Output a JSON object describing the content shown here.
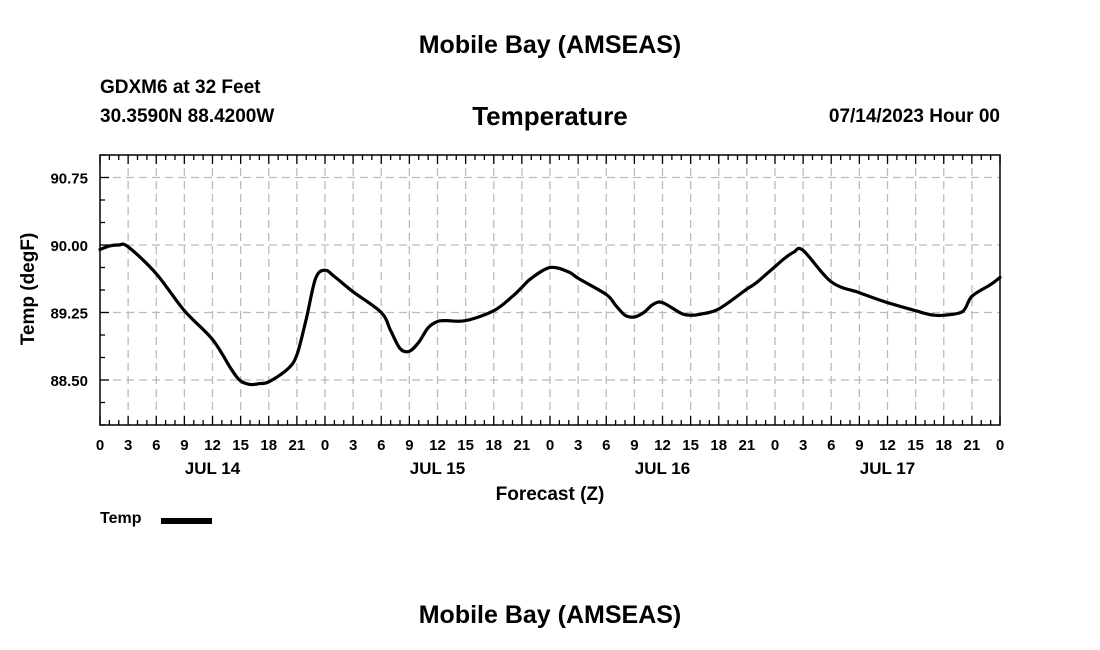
{
  "header": {
    "title": "Mobile Bay (AMSEAS)",
    "station": "GDXM6 at 32 Feet",
    "coords": "30.3590N  88.4200W",
    "subtitle": "Temperature",
    "datetime": "07/14/2023 Hour 00"
  },
  "footer": {
    "title": "Mobile Bay (AMSEAS)"
  },
  "legend": {
    "label": "Temp"
  },
  "colors": {
    "line": "#000000",
    "grid": "#bbbbbb",
    "axis": "#000000"
  },
  "chart_data": {
    "type": "line",
    "title": "Temperature",
    "xlabel": "Forecast (Z)",
    "ylabel": "Temp (degF)",
    "xlim": [
      0,
      96
    ],
    "ylim": [
      88.0,
      91.0
    ],
    "grid": true,
    "legend_position": "bottom-left",
    "yticks": [
      88.5,
      89.25,
      90.0,
      90.75
    ],
    "ytick_labels": [
      "88.50",
      "89.25",
      "90.00",
      "90.75"
    ],
    "xticks": [
      0,
      3,
      6,
      9,
      12,
      15,
      18,
      21,
      24,
      27,
      30,
      33,
      36,
      39,
      42,
      45,
      48,
      51,
      54,
      57,
      60,
      63,
      66,
      69,
      72,
      75,
      78,
      81,
      84,
      87,
      90,
      93,
      96
    ],
    "xtick_labels": [
      "0",
      "3",
      "6",
      "9",
      "12",
      "15",
      "18",
      "21",
      "0",
      "3",
      "6",
      "9",
      "12",
      "15",
      "18",
      "21",
      "0",
      "3",
      "6",
      "9",
      "12",
      "15",
      "18",
      "21",
      "0",
      "3",
      "6",
      "9",
      "12",
      "15",
      "18",
      "21",
      "0"
    ],
    "day_labels": [
      {
        "label": "JUL 14",
        "x": 12
      },
      {
        "label": "JUL 15",
        "x": 36
      },
      {
        "label": "JUL 16",
        "x": 60
      },
      {
        "label": "JUL 17",
        "x": 84
      }
    ],
    "series": [
      {
        "name": "Temp",
        "x": [
          0,
          1,
          2,
          3,
          6,
          9,
          12,
          14,
          15,
          16,
          17,
          18,
          20,
          21,
          22,
          23,
          24,
          25,
          27,
          30,
          31,
          32,
          33,
          34,
          35,
          36,
          37,
          39,
          42,
          44,
          45,
          46,
          48,
          50,
          51,
          54,
          55,
          56,
          57,
          58,
          59,
          60,
          62,
          63,
          64,
          66,
          69,
          70,
          72,
          73,
          74,
          75,
          78,
          81,
          84,
          87,
          88,
          89,
          90,
          92,
          93,
          95,
          96
        ],
        "y": [
          89.95,
          89.99,
          90.0,
          89.98,
          89.68,
          89.27,
          88.95,
          88.62,
          88.49,
          88.45,
          88.46,
          88.48,
          88.62,
          88.78,
          89.18,
          89.63,
          89.72,
          89.65,
          89.48,
          89.25,
          89.05,
          88.85,
          88.82,
          88.92,
          89.08,
          89.15,
          89.16,
          89.16,
          89.27,
          89.43,
          89.53,
          89.63,
          89.75,
          89.7,
          89.63,
          89.45,
          89.33,
          89.22,
          89.2,
          89.25,
          89.34,
          89.36,
          89.24,
          89.22,
          89.23,
          89.29,
          89.51,
          89.58,
          89.76,
          89.85,
          89.92,
          89.94,
          89.59,
          89.47,
          89.36,
          89.27,
          89.24,
          89.22,
          89.22,
          89.26,
          89.43,
          89.56,
          89.64
        ]
      }
    ]
  }
}
